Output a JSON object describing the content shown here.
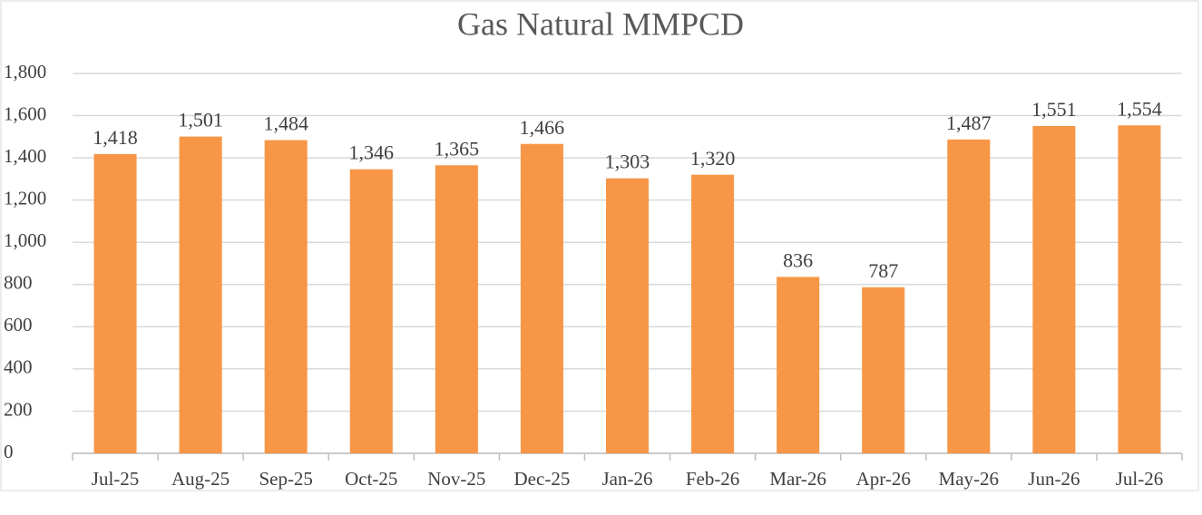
{
  "chart_data": {
    "type": "bar",
    "title": "Gas Natural MMPCD",
    "categories": [
      "Jul-25",
      "Aug-25",
      "Sep-25",
      "Oct-25",
      "Nov-25",
      "Dec-25",
      "Jan-26",
      "Feb-26",
      "Mar-26",
      "Apr-26",
      "May-26",
      "Jun-26",
      "Jul-26"
    ],
    "values": [
      1418,
      1501,
      1484,
      1346,
      1365,
      1466,
      1303,
      1320,
      836,
      787,
      1487,
      1551,
      1554
    ],
    "value_labels": [
      "1,418",
      "1,501",
      "1,484",
      "1,346",
      "1,365",
      "1,466",
      "1,303",
      "1,320",
      "836",
      "787",
      "1,487",
      "1,551",
      "1,554"
    ],
    "color": "#f79646",
    "ylim": [
      0,
      1800
    ],
    "yticks": [
      0,
      200,
      400,
      600,
      800,
      {
        "value": 1000,
        "label": "1,000"
      },
      {
        "value": 1200,
        "label": "1,200"
      },
      {
        "value": 1400,
        "label": "1,400"
      },
      {
        "value": 1600,
        "label": "1,600"
      },
      {
        "value": 1800,
        "label": "1,800"
      }
    ],
    "grid": true
  }
}
